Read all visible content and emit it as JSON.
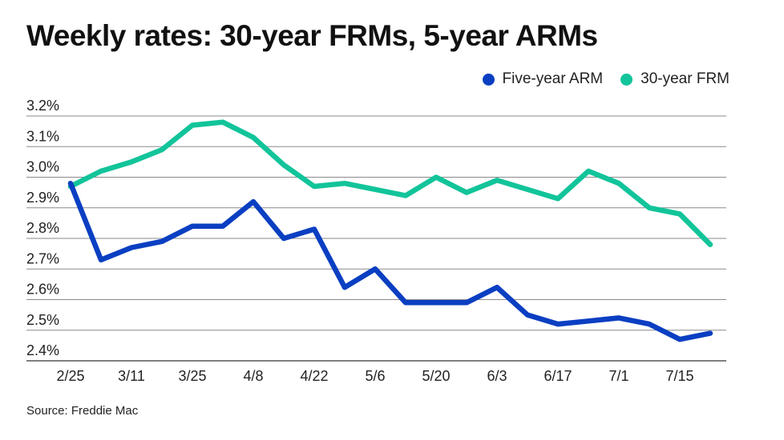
{
  "chart_data": {
    "type": "line",
    "title": "Weekly rates: 30-year FRMs, 5-year ARMs",
    "source": "Source: Freddie Mac",
    "xlabel": "",
    "ylabel": "",
    "ylim": [
      2.4,
      3.2
    ],
    "yticks": [
      3.2,
      3.1,
      3.0,
      2.9,
      2.8,
      2.7,
      2.6,
      2.5,
      2.4
    ],
    "ytick_labels": [
      "3.2%",
      "3.1%",
      "3.0%",
      "2.9%",
      "2.8%",
      "2.7%",
      "2.6%",
      "2.5%",
      "2.4%"
    ],
    "x_tick_labels": [
      "2/25",
      "3/11",
      "3/25",
      "4/8",
      "4/22",
      "5/6",
      "5/20",
      "6/3",
      "6/17",
      "7/1",
      "7/15"
    ],
    "x_tick_every": 2,
    "legend": "top-right",
    "grid": true,
    "series": [
      {
        "name": "Five-year ARM",
        "color": "#0b3fc2",
        "values": [
          2.98,
          2.73,
          2.77,
          2.79,
          2.84,
          2.84,
          2.92,
          2.8,
          2.83,
          2.64,
          2.7,
          2.59,
          2.59,
          2.59,
          2.64,
          2.55,
          2.52,
          2.53,
          2.54,
          2.52,
          2.47,
          2.49
        ]
      },
      {
        "name": "30-year FRM",
        "color": "#12c49a",
        "values": [
          2.97,
          3.02,
          3.05,
          3.09,
          3.17,
          3.18,
          3.13,
          3.04,
          2.97,
          2.98,
          2.96,
          2.94,
          3.0,
          2.95,
          2.99,
          2.96,
          2.93,
          3.02,
          2.98,
          2.9,
          2.88,
          2.78
        ]
      }
    ]
  }
}
